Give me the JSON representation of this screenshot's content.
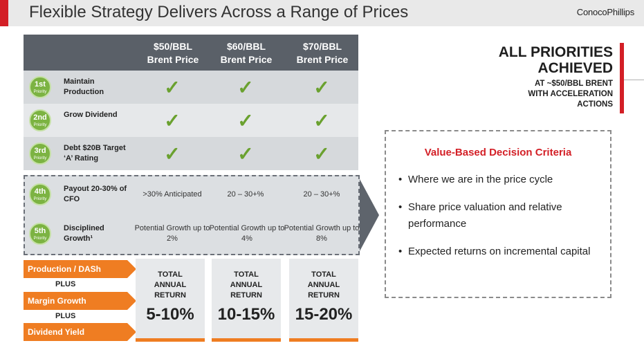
{
  "header": {
    "title": "Flexible Strategy Delivers Across a Range of Prices",
    "brand": "ConocoPhillips"
  },
  "matrix": {
    "columns": [
      {
        "line1": "$50/BBL",
        "line2": "Brent Price"
      },
      {
        "line1": "$60/BBL",
        "line2": "Brent Price"
      },
      {
        "line1": "$70/BBL",
        "line2": "Brent Price"
      }
    ],
    "rows": [
      {
        "num": "1st",
        "word": "Priority",
        "label": "Maintain Production",
        "cells": [
          "✓",
          "✓",
          "✓"
        ]
      },
      {
        "num": "2nd",
        "word": "Priority",
        "label": "Grow Dividend",
        "cells": [
          "✓",
          "✓",
          "✓"
        ]
      },
      {
        "num": "3rd",
        "word": "Priority",
        "label": "Debt $20B Target ‘A’ Rating",
        "cells": [
          "✓",
          "✓",
          "✓"
        ]
      },
      {
        "num": "4th",
        "word": "Priority",
        "label": "Payout 20-30% of CFO",
        "cells": [
          ">30% Anticipated",
          "20 – 30+%",
          "20 – 30+%"
        ]
      },
      {
        "num": "5th",
        "word": "Priority",
        "label": "Disciplined Growth¹",
        "cells": [
          "Potential Growth up to 2%",
          "Potential Growth up to 4%",
          "Potential Growth up to 8%"
        ]
      }
    ]
  },
  "components": {
    "tag1": "Production / DASh",
    "plus1": "PLUS",
    "tag2": "Margin Growth",
    "plus2": "PLUS",
    "tag3": "Dividend Yield"
  },
  "returns": {
    "heading_line1": "TOTAL",
    "heading_line2": "ANNUAL",
    "heading_line3": "RETURN",
    "values": [
      "5-10%",
      "10-15%",
      "15-20%"
    ]
  },
  "summary": {
    "title_line1": "ALL PRIORITIES",
    "title_line2": "ACHIEVED",
    "sub_line1": "AT ~$50/BBL BRENT",
    "sub_line2": "WITH ACCELERATION",
    "sub_line3": "ACTIONS"
  },
  "criteria": {
    "title": "Value-Based Decision Criteria",
    "items": [
      "Where we are in the price cycle",
      "Share price valuation and relative performance",
      "Expected returns on incremental capital"
    ]
  },
  "colors": {
    "accent_red": "#d31f26",
    "accent_orange": "#ef7d22",
    "priority_green": "#7cb342",
    "header_slate": "#5a6068"
  }
}
